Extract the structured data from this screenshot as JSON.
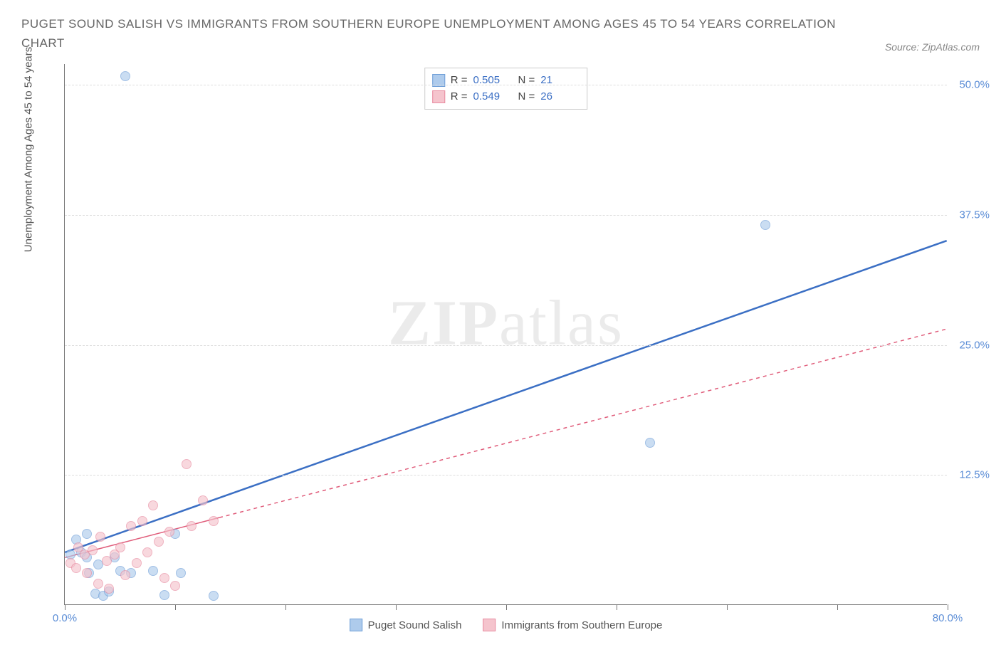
{
  "title": "PUGET SOUND SALISH VS IMMIGRANTS FROM SOUTHERN EUROPE UNEMPLOYMENT AMONG AGES 45 TO 54 YEARS CORRELATION CHART",
  "source": "Source: ZipAtlas.com",
  "y_axis_label": "Unemployment Among Ages 45 to 54 years",
  "watermark_a": "ZIP",
  "watermark_b": "atlas",
  "chart": {
    "type": "scatter",
    "xlim": [
      0,
      80
    ],
    "ylim": [
      0,
      52
    ],
    "x_ticks": [
      0,
      10,
      20,
      30,
      40,
      50,
      60,
      70,
      80
    ],
    "x_tick_labels": {
      "0": "0.0%",
      "80": "80.0%"
    },
    "y_grid": [
      12.5,
      25.0,
      37.5,
      50.0
    ],
    "y_tick_labels": [
      "12.5%",
      "25.0%",
      "37.5%",
      "50.0%"
    ],
    "background_color": "#ffffff",
    "grid_color": "#dddddd",
    "axis_color": "#777777",
    "tick_label_color": "#5b8dd6"
  },
  "series": [
    {
      "name": "Puget Sound Salish",
      "fill": "#aecbec",
      "stroke": "#6f9fd8",
      "line_color": "#3b6fc4",
      "line_dash": "none",
      "line_width": 2.5,
      "R": "0.505",
      "N": "21",
      "trend": {
        "x1": 0,
        "y1": 5.0,
        "x2": 80,
        "y2": 35.0
      },
      "solid_trend_extent": {
        "x1": 0,
        "x2": 80
      },
      "points": [
        [
          5.5,
          50.8
        ],
        [
          63.5,
          36.5
        ],
        [
          53.0,
          15.5
        ],
        [
          0.5,
          4.8
        ],
        [
          1.0,
          6.2
        ],
        [
          1.5,
          5.0
        ],
        [
          2.0,
          6.8
        ],
        [
          2.2,
          3.0
        ],
        [
          2.8,
          1.0
        ],
        [
          3.0,
          3.8
        ],
        [
          3.5,
          0.8
        ],
        [
          4.0,
          1.2
        ],
        [
          4.5,
          4.5
        ],
        [
          5.0,
          3.2
        ],
        [
          6.0,
          3.0
        ],
        [
          8.0,
          3.2
        ],
        [
          9.0,
          0.9
        ],
        [
          10.0,
          6.8
        ],
        [
          10.5,
          3.0
        ],
        [
          13.5,
          0.8
        ],
        [
          2.0,
          4.5
        ]
      ]
    },
    {
      "name": "Immigrants from Southern Europe",
      "fill": "#f5c4cd",
      "stroke": "#e88ba0",
      "line_color": "#e05c7a",
      "line_dash": "5,5",
      "line_width": 1.5,
      "R": "0.549",
      "N": "26",
      "trend": {
        "x1": 0,
        "y1": 4.5,
        "x2": 80,
        "y2": 26.5
      },
      "solid_trend_extent": {
        "x1": 0,
        "x2": 14
      },
      "points": [
        [
          0.5,
          4.0
        ],
        [
          1.0,
          3.5
        ],
        [
          1.2,
          5.5
        ],
        [
          1.8,
          4.8
        ],
        [
          2.0,
          3.0
        ],
        [
          2.5,
          5.2
        ],
        [
          3.0,
          2.0
        ],
        [
          3.2,
          6.5
        ],
        [
          3.8,
          4.2
        ],
        [
          4.0,
          1.5
        ],
        [
          4.5,
          4.8
        ],
        [
          5.0,
          5.5
        ],
        [
          5.5,
          2.8
        ],
        [
          6.0,
          7.5
        ],
        [
          6.5,
          4.0
        ],
        [
          7.0,
          8.0
        ],
        [
          7.5,
          5.0
        ],
        [
          8.0,
          9.5
        ],
        [
          8.5,
          6.0
        ],
        [
          9.0,
          2.5
        ],
        [
          9.5,
          7.0
        ],
        [
          10.0,
          1.8
        ],
        [
          11.0,
          13.5
        ],
        [
          11.5,
          7.5
        ],
        [
          12.5,
          10.0
        ],
        [
          13.5,
          8.0
        ]
      ]
    }
  ],
  "legend_top": {
    "r_label": "R =",
    "n_label": "N ="
  }
}
